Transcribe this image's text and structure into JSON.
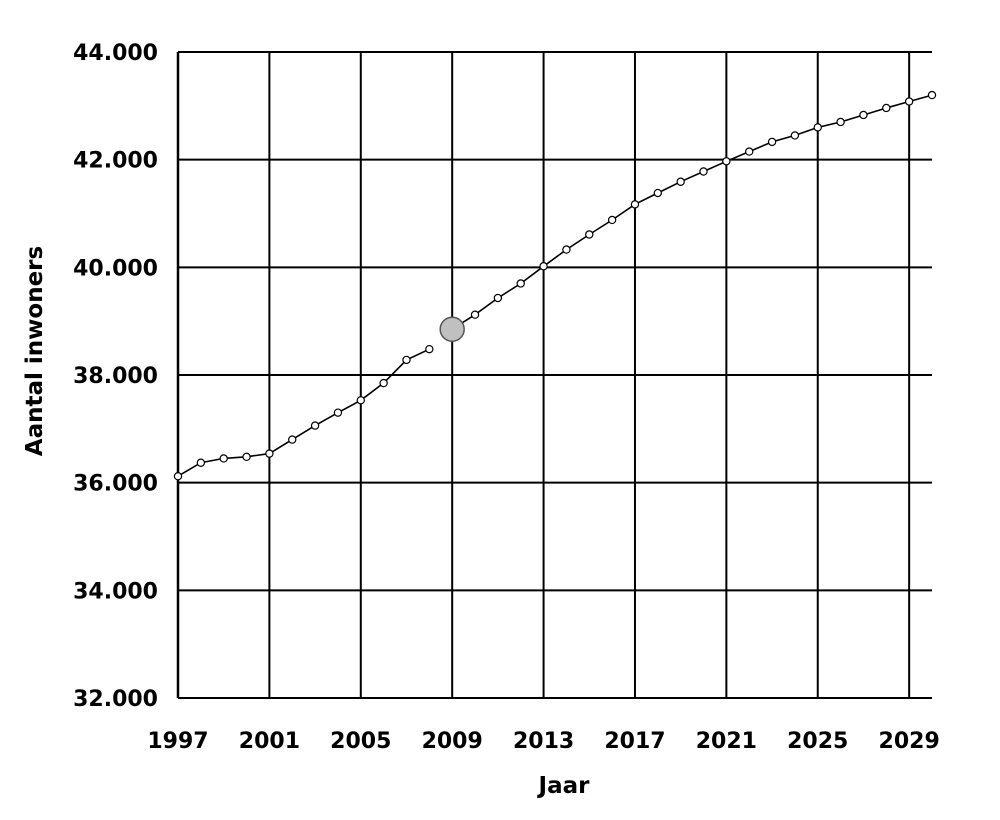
{
  "chart_data": {
    "type": "line",
    "xlabel": "Jaar",
    "ylabel": "Aantal inwoners",
    "xlim": [
      1997,
      2030
    ],
    "ylim": [
      32000,
      44000
    ],
    "grid": true,
    "x_ticks": [
      1997,
      2001,
      2005,
      2009,
      2013,
      2017,
      2021,
      2025,
      2029
    ],
    "x_tick_labels": [
      "1997",
      "2001",
      "2005",
      "2009",
      "2013",
      "2017",
      "2021",
      "2025",
      "2029"
    ],
    "y_ticks": [
      32000,
      34000,
      36000,
      38000,
      40000,
      42000,
      44000
    ],
    "y_tick_labels": [
      "32.000",
      "34.000",
      "36.000",
      "38.000",
      "40.000",
      "42.000",
      "44.000"
    ],
    "line_color": "#000000",
    "series": [
      {
        "segment": "historic",
        "x": [
          1997,
          1998,
          1999,
          2000,
          2001,
          2002,
          2003,
          2004,
          2005,
          2006,
          2007,
          2008
        ],
        "y": [
          36120,
          36370,
          36450,
          36480,
          36540,
          36800,
          37060,
          37300,
          37530,
          37850,
          38280,
          38480
        ]
      },
      {
        "segment": "forecast",
        "x": [
          2009,
          2010,
          2011,
          2012,
          2013,
          2014,
          2015,
          2016,
          2017,
          2018,
          2019,
          2020,
          2021,
          2022,
          2023,
          2024,
          2025,
          2026,
          2027,
          2028,
          2029,
          2030
        ],
        "y": [
          38850,
          39120,
          39430,
          39700,
          40020,
          40330,
          40610,
          40880,
          41170,
          41380,
          41590,
          41780,
          41970,
          42150,
          42330,
          42450,
          42600,
          42700,
          42830,
          42960,
          43080,
          43200
        ]
      }
    ],
    "highlight_point": {
      "x": 2009,
      "y": 38850,
      "color": "#c0c0c0"
    }
  }
}
